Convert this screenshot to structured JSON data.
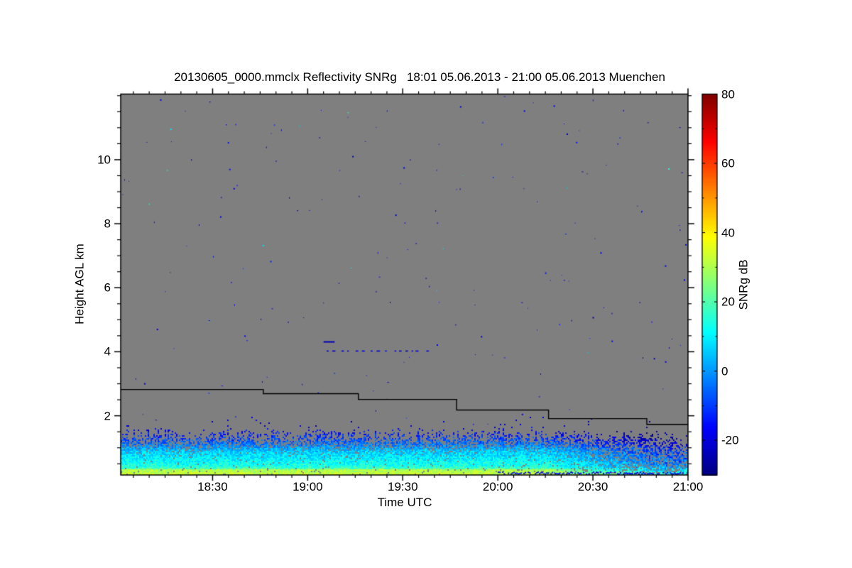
{
  "figure": {
    "title": "20130605_0000.mmclx Reflectivity SNRg   18:01 05.06.2013 - 21:00 05.06.2013 Muenchen",
    "x_axis": {
      "label": "Time UTC",
      "tick_labels": [
        "18:30",
        "19:00",
        "19:30",
        "20:00",
        "20:30",
        "21:00"
      ]
    },
    "y_axis": {
      "label": "Height AGL km",
      "tick_labels": [
        "2",
        "4",
        "6",
        "8",
        "10"
      ]
    },
    "colorbar": {
      "label": "SNRg dB",
      "tick_labels": [
        "80",
        "60",
        "40",
        "20",
        "0",
        "-20"
      ]
    }
  },
  "chart_data": {
    "type": "heatmap",
    "title": "20130605_0000.mmclx Reflectivity SNRg   18:01 05.06.2013 - 21:00 05.06.2013 Muenchen",
    "xlabel": "Time UTC",
    "ylabel": "Height AGL km",
    "site": "Muenchen",
    "time_start": "18:01",
    "time_end": "21:00",
    "x_range_minutes": [
      1,
      180
    ],
    "x_tick_minutes": [
      30,
      60,
      90,
      120,
      150,
      180
    ],
    "x_minor_step_minutes": 5,
    "y_range_km": [
      0.15,
      12.05
    ],
    "y_tick_km": [
      2,
      4,
      6,
      8,
      10
    ],
    "y_minor_step_km": 0.5,
    "grid": false,
    "colorbar": {
      "label": "SNRg dB",
      "tick_values": [
        80,
        60,
        40,
        20,
        0,
        -20
      ],
      "minor_step_db": 10,
      "value_range_db": [
        -30,
        80
      ],
      "colormap": "jet"
    },
    "no_signal_color": "#7f7f7f",
    "sensitivity_step_line": {
      "color": "#000000",
      "points_minute_km": [
        [
          1,
          2.82
        ],
        [
          46,
          2.82
        ],
        [
          46,
          2.69
        ],
        [
          76,
          2.69
        ],
        [
          76,
          2.51
        ],
        [
          107,
          2.51
        ],
        [
          107,
          2.18
        ],
        [
          136,
          2.18
        ],
        [
          136,
          1.91
        ],
        [
          167,
          1.91
        ],
        [
          167,
          1.73
        ],
        [
          180,
          1.73
        ]
      ]
    },
    "boundary_layer_noise_band": {
      "top_km_mean": 1.45,
      "top_km_jitter": 0.18,
      "snr_profile_km_db": [
        [
          0.15,
          36
        ],
        [
          0.3,
          24
        ],
        [
          0.45,
          14
        ],
        [
          0.9,
          6
        ],
        [
          1.2,
          -6
        ],
        [
          1.45,
          -14
        ],
        [
          1.8,
          -22
        ]
      ],
      "snr_noise_db": 12,
      "fade_start_minute": 135,
      "fade_db": 16,
      "bottom_strip_km": 0.33,
      "bottom_line_after_minute": 120,
      "bottom_line_db": -18
    },
    "scattered_noise_dots": {
      "count": 185,
      "db_range": [
        -28,
        -12
      ],
      "cyan_fraction": 0.06
    },
    "aircraft_trace": {
      "km": 4.04,
      "start_minute": 66,
      "end_minute": 98,
      "db": -20,
      "spur": {
        "km": 4.33,
        "start_minute": 65,
        "end_minute": 68.5,
        "db": -24
      }
    }
  }
}
